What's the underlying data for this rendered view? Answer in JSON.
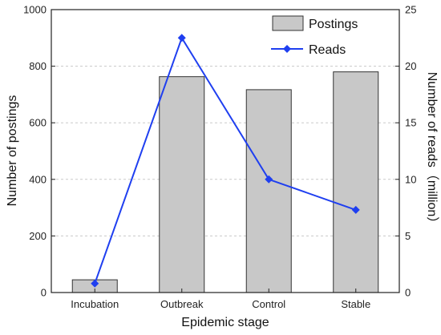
{
  "chart_data": {
    "type": "bar",
    "categories": [
      "Incubation",
      "Outbreak",
      "Control",
      "Stable"
    ],
    "series": [
      {
        "name": "Postings",
        "type": "bar",
        "axis": "left",
        "values": [
          45,
          763,
          717,
          780
        ],
        "color": "#c8c8c8"
      },
      {
        "name": "Reads",
        "type": "line",
        "axis": "right",
        "values": [
          0.8,
          22.5,
          10.0,
          7.3
        ],
        "color": "#1f3ff0"
      }
    ],
    "xlabel": "Epidemic stage",
    "ylabel": "Number of postings",
    "y2label": "Number of reads（million）",
    "ylim": [
      0,
      1000
    ],
    "y2lim": [
      0,
      25
    ],
    "yticks": [
      "0",
      "200",
      "400",
      "600",
      "800",
      "1000"
    ],
    "y2ticks": [
      "0",
      "5",
      "10",
      "15",
      "20",
      "25"
    ],
    "grid": "horizontal dashed",
    "legend_position": "top-right"
  }
}
